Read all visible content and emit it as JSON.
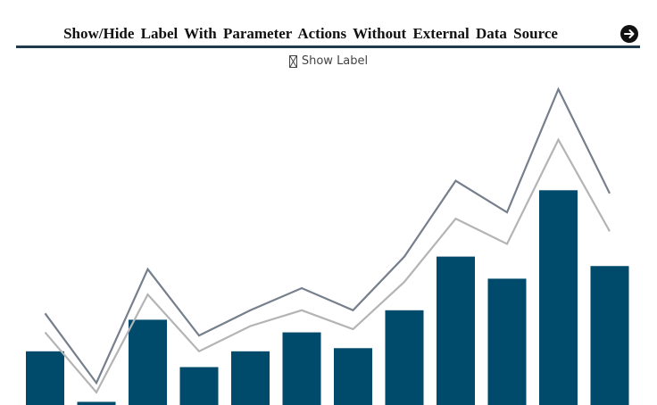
{
  "header": {
    "title": "Show/Hide Label With Parameter Actions Without External Data Source",
    "nav_icon": "arrow-right-circle-icon"
  },
  "toggle": {
    "label": "Show Label",
    "icon": "checkbox-unchecked-icon",
    "checked": false
  },
  "colors": {
    "bar": "#004a6b",
    "line_dark": "#767f8c",
    "line_light": "#b4b4b4",
    "rule": "#1e3a4c"
  },
  "chart_data": {
    "type": "bar",
    "ylim": [
      0,
      100
    ],
    "grid": false,
    "legend": "none",
    "values": [
      17,
      1,
      27,
      12,
      17,
      23,
      18,
      30,
      47,
      40,
      68,
      44
    ],
    "series": [
      {
        "type": "line",
        "color_key": "line_dark",
        "values": [
          29,
          7,
          43,
          22,
          30,
          37,
          30,
          47,
          71,
          61,
          100,
          67
        ]
      },
      {
        "type": "line",
        "color_key": "line_light",
        "values": [
          23,
          4,
          35,
          17,
          25,
          30,
          24,
          39,
          59,
          51,
          84,
          55
        ]
      }
    ]
  }
}
